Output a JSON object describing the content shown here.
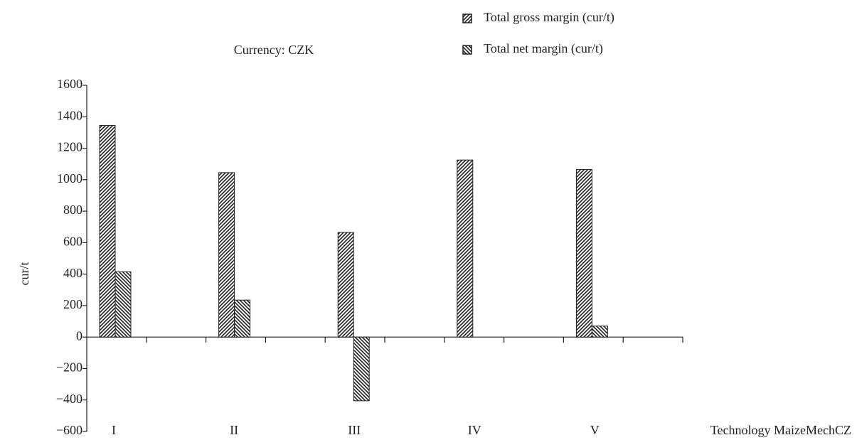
{
  "chart_data": {
    "type": "bar",
    "subtitle": "Currency: CZK",
    "y_label": "cur/t",
    "x_label": "Technology MaizeMechCZ",
    "categories": [
      "I",
      "II",
      "III",
      "IV",
      "V"
    ],
    "series": [
      {
        "name": "Total gross margin (cur/t)",
        "color": "#222222",
        "hatch": "forward",
        "values": [
          1345,
          1045,
          665,
          1125,
          1065
        ]
      },
      {
        "name": "Total net margin (cur/t)",
        "color": "#222222",
        "hatch": "backward",
        "values": [
          415,
          235,
          -405,
          null,
          70
        ]
      }
    ],
    "ylim": [
      -600,
      1600
    ],
    "yticks": [
      {
        "value": -600,
        "label": "−600"
      },
      {
        "value": -400,
        "label": "−400"
      },
      {
        "value": -200,
        "label": "−200"
      },
      0,
      200,
      400,
      600,
      800,
      1000,
      1200,
      1400,
      1600
    ],
    "grid": false,
    "legend": "top-right"
  }
}
